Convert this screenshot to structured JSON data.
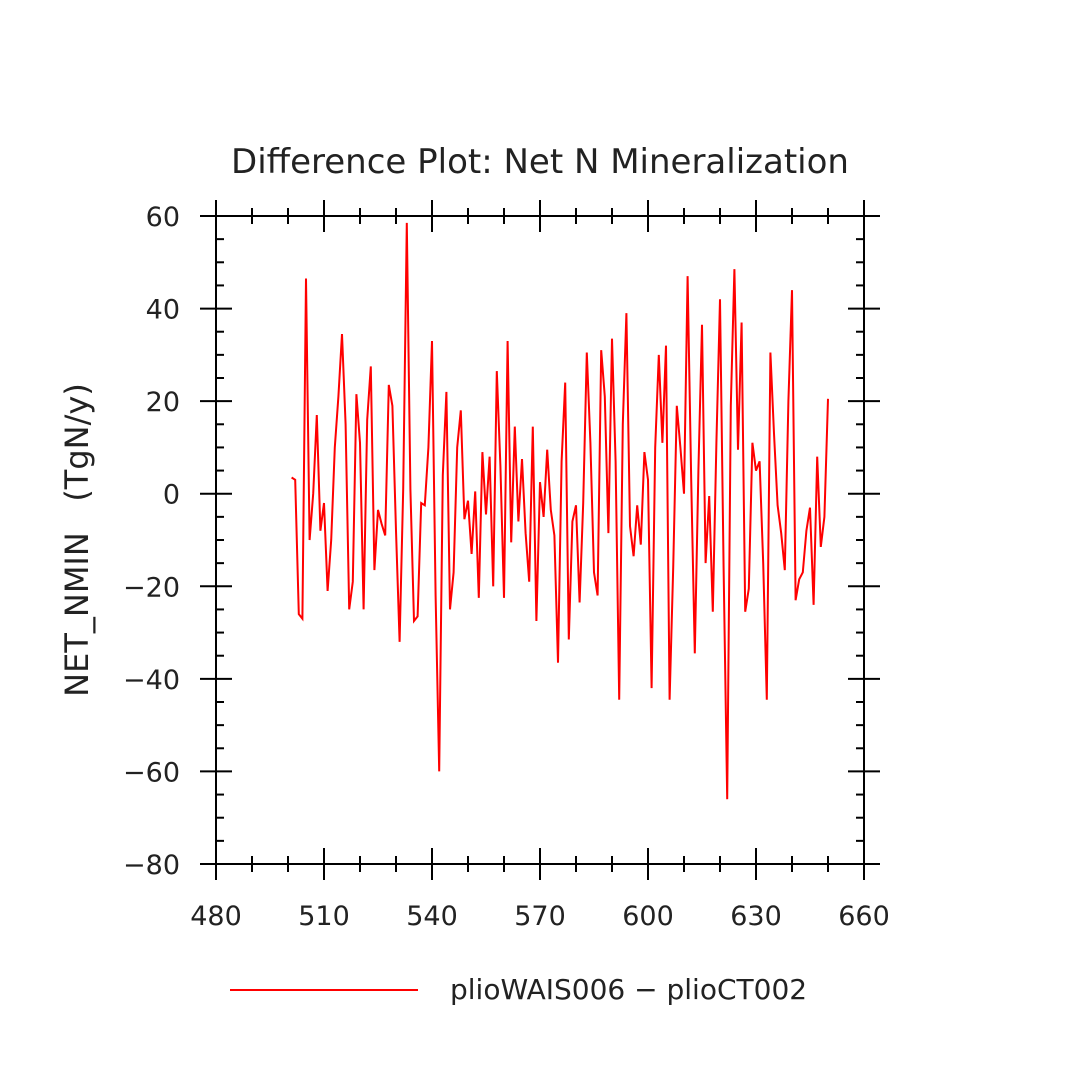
{
  "chart_data": {
    "type": "line",
    "title": "Difference Plot: Net N Mineralization",
    "xlabel": "",
    "ylabel": "NET_NMIN   (TgN/y)",
    "xlim": [
      480,
      660
    ],
    "ylim": [
      -80,
      60
    ],
    "xticks": [
      480,
      510,
      540,
      570,
      600,
      630,
      660
    ],
    "yticks": [
      -80,
      -60,
      -40,
      -20,
      0,
      20,
      40,
      60
    ],
    "xtick_labels": [
      "480",
      "510",
      "540",
      "570",
      "600",
      "630",
      "660"
    ],
    "ytick_labels": [
      "−80",
      "−60",
      "−40",
      "−20",
      "0",
      "20",
      "40",
      "60"
    ],
    "legend_position": "bottom",
    "series": [
      {
        "name": "plioWAIS006 − plioCT002",
        "color": "#ff0000",
        "x_start": 501,
        "x_step": 1,
        "values": [
          3.5,
          3,
          -26,
          -27,
          46.5,
          -10,
          0,
          17,
          -8,
          -2,
          -21,
          -10,
          10,
          21,
          34.5,
          15,
          -25,
          -19,
          21.5,
          11,
          -25,
          16,
          27.5,
          -16.5,
          -3.5,
          -6.5,
          -9,
          23.5,
          19,
          -8,
          -32,
          1,
          58.5,
          1,
          -27.5,
          -26.5,
          -2,
          -2.5,
          10,
          33,
          -22,
          -60,
          4,
          22,
          -25,
          -17,
          10,
          18,
          -5.5,
          -1.5,
          -13,
          0.5,
          -22.5,
          9,
          -4.5,
          8,
          -20,
          26.5,
          6,
          -22.5,
          33,
          -10.5,
          14.5,
          -6,
          7.5,
          -8.5,
          -19,
          14.5,
          -27.5,
          2.5,
          -5,
          9.5,
          -3.5,
          -9,
          -36.5,
          7,
          24,
          -31.5,
          -6,
          -2.5,
          -23.5,
          -2,
          30.5,
          11,
          -17,
          -22,
          31,
          21,
          -8.5,
          33.5,
          7,
          -44.5,
          15,
          39,
          -7,
          -13.5,
          -2.5,
          -11,
          9,
          3,
          -42,
          10,
          30,
          11,
          32,
          -44.5,
          -16,
          19,
          10,
          0,
          47,
          3,
          -34.5,
          5,
          36.5,
          -15,
          -0.5,
          -25.5,
          11,
          42,
          -16,
          -66,
          19,
          48.5,
          9.5,
          37,
          -25.5,
          -20.5,
          11,
          5,
          7,
          -15,
          -44.5,
          30.5,
          13,
          -2.5,
          -8.5,
          -16.5,
          20,
          44,
          -23,
          -18.5,
          -17,
          -8,
          -3,
          -24,
          8,
          -11.5,
          -5,
          20.5
        ]
      }
    ]
  }
}
